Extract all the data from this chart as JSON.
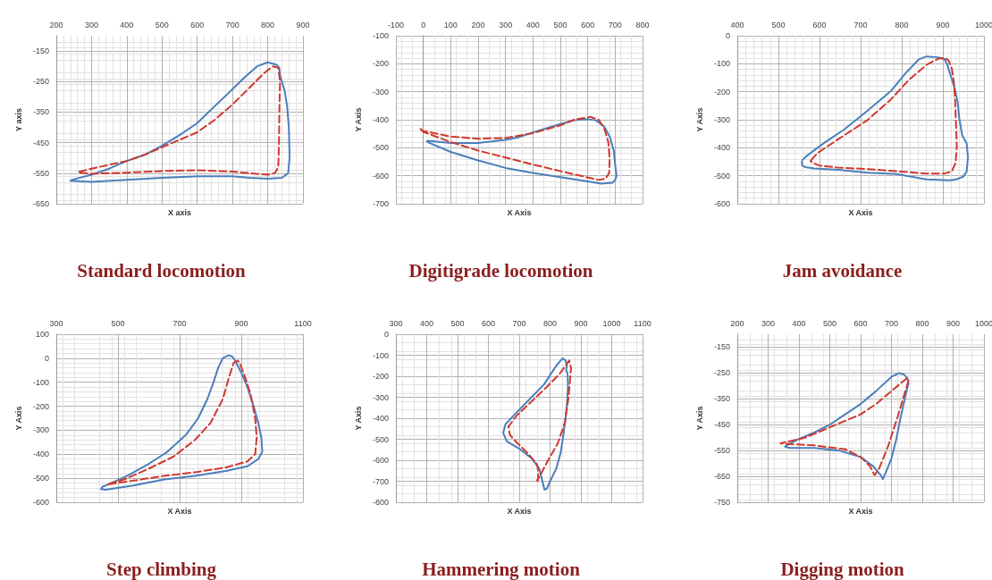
{
  "chart_data": [
    {
      "type": "line",
      "title": "Standard locomotion",
      "xlabel": "X axis",
      "ylabel": "Y axis",
      "xlim": [
        200,
        900
      ],
      "xticks": [
        200,
        300,
        400,
        500,
        600,
        700,
        800,
        900
      ],
      "ylim": [
        -650,
        -100
      ],
      "yticks": [
        -650,
        -550,
        -450,
        -350,
        -250,
        -150
      ],
      "grid": true,
      "marker": "none",
      "series": [
        {
          "color": "#4a7ebb",
          "line_style": "solid",
          "x": [
            240,
            300,
            400,
            500,
            600,
            700,
            750,
            800,
            840,
            858,
            862,
            860,
            855,
            848,
            835,
            833,
            825,
            800,
            770,
            740,
            700,
            650,
            600,
            550,
            500,
            450,
            400,
            350,
            300,
            250,
            243
          ],
          "values": [
            -575,
            -578,
            -572,
            -565,
            -560,
            -560,
            -565,
            -568,
            -565,
            -550,
            -500,
            -400,
            -330,
            -280,
            -230,
            -205,
            -195,
            -187,
            -200,
            -230,
            -275,
            -330,
            -386,
            -425,
            -460,
            -490,
            -510,
            -535,
            -555,
            -570,
            -573
          ]
        },
        {
          "color": "#d0382e",
          "line_style": "dashed",
          "x": [
            265,
            300,
            400,
            450,
            500,
            600,
            650,
            700,
            750,
            790,
            815,
            830,
            835,
            833,
            832,
            830,
            820,
            800,
            750,
            700,
            600,
            500,
            400,
            300,
            265
          ],
          "values": [
            -545,
            -535,
            -510,
            -490,
            -465,
            -416,
            -375,
            -325,
            -268,
            -222,
            -200,
            -205,
            -250,
            -350,
            -450,
            -530,
            -550,
            -555,
            -550,
            -545,
            -540,
            -543,
            -548,
            -552,
            -548
          ]
        }
      ]
    },
    {
      "type": "line",
      "title": "Digitigrade locomotion",
      "xlabel": "X Axis",
      "ylabel": "Y Axis",
      "xlim": [
        -100,
        800
      ],
      "xticks": [
        -100,
        0,
        100,
        200,
        300,
        400,
        500,
        600,
        700,
        800
      ],
      "ylim": [
        -700,
        -100
      ],
      "yticks": [
        -700,
        -600,
        -500,
        -400,
        -300,
        -200,
        -100
      ],
      "grid": true,
      "marker": "none",
      "series": [
        {
          "color": "#4a7ebb",
          "line_style": "solid",
          "x": [
            15,
            100,
            200,
            300,
            350,
            400,
            450,
            500,
            550,
            600,
            630,
            660,
            680,
            695,
            700,
            705,
            700,
            690,
            650,
            600,
            500,
            400,
            300,
            200,
            100,
            20,
            13
          ],
          "values": [
            -475,
            -483,
            -483,
            -472,
            -462,
            -445,
            -430,
            -415,
            -402,
            -398,
            -402,
            -425,
            -460,
            -510,
            -560,
            -600,
            -615,
            -625,
            -628,
            -620,
            -605,
            -590,
            -572,
            -545,
            -515,
            -482,
            -478
          ]
        },
        {
          "color": "#d0382e",
          "line_style": "dashed",
          "x": [
            -10,
            0,
            100,
            200,
            300,
            400,
            500,
            550,
            610,
            640,
            660,
            675,
            680,
            678,
            665,
            640,
            550,
            400,
            300,
            200,
            100,
            0,
            -10
          ],
          "values": [
            -433,
            -440,
            -460,
            -468,
            -465,
            -448,
            -420,
            -400,
            -390,
            -400,
            -430,
            -480,
            -540,
            -590,
            -610,
            -615,
            -595,
            -560,
            -535,
            -510,
            -480,
            -443,
            -435
          ]
        }
      ]
    },
    {
      "type": "line",
      "title": "Jam avoidance",
      "xlabel": "X Axis",
      "ylabel": "Y Axis",
      "xlim": [
        400,
        1000
      ],
      "xticks": [
        400,
        500,
        600,
        700,
        800,
        900,
        1000
      ],
      "ylim": [
        -600,
        0
      ],
      "yticks": [
        -600,
        -500,
        -400,
        -300,
        -200,
        -100,
        0
      ],
      "grid": true,
      "marker": "none",
      "series": [
        {
          "color": "#4a7ebb",
          "line_style": "solid",
          "x": [
            558,
            569,
            609,
            659,
            717,
            774,
            810,
            835,
            842,
            860,
            889,
            904,
            911,
            918,
            929,
            936,
            940,
            947,
            958,
            961,
            958,
            950,
            932,
            918,
            860,
            788,
            717,
            645,
            587,
            565,
            558,
            557
          ],
          "values": [
            -444,
            -429,
            -385,
            -336,
            -267,
            -197,
            -133,
            -94,
            -84,
            -74,
            -77,
            -84,
            -104,
            -138,
            -188,
            -237,
            -296,
            -355,
            -385,
            -434,
            -484,
            -503,
            -513,
            -516,
            -513,
            -494,
            -489,
            -479,
            -474,
            -469,
            -464,
            -450
          ]
        },
        {
          "color": "#d0382e",
          "line_style": "dashed",
          "x": [
            580,
            594,
            645,
            717,
            774,
            817,
            860,
            889,
            905,
            914,
            922,
            927,
            930,
            932,
            934,
            931,
            922,
            904,
            860,
            788,
            717,
            645,
            601,
            583,
            578
          ],
          "values": [
            -444,
            -420,
            -370,
            -301,
            -227,
            -158,
            -104,
            -82,
            -79,
            -89,
            -118,
            -168,
            -237,
            -316,
            -395,
            -454,
            -484,
            -492,
            -492,
            -484,
            -476,
            -471,
            -464,
            -454,
            -447
          ]
        }
      ]
    },
    {
      "type": "line",
      "title": "Step climbing",
      "xlabel": "X Axis",
      "ylabel": "Y Axis",
      "xlim": [
        300,
        1100
      ],
      "xticks": [
        300,
        500,
        700,
        900,
        1100
      ],
      "ylim": [
        -600,
        100
      ],
      "yticks": [
        -600,
        -500,
        -400,
        -300,
        -200,
        -100,
        0,
        100
      ],
      "grid": true,
      "marker": "none",
      "series": [
        {
          "color": "#4a7ebb",
          "line_style": "solid",
          "x": [
            855,
            840,
            825,
            810,
            790,
            760,
            720,
            660,
            600,
            530,
            470,
            450,
            445,
            460,
            550,
            650,
            750,
            850,
            920,
            955,
            968,
            965,
            955,
            940,
            920,
            900,
            880,
            870,
            858
          ],
          "values": [
            10,
            0,
            -40,
            -100,
            -170,
            -250,
            -320,
            -390,
            -440,
            -490,
            -525,
            -535,
            -545,
            -548,
            -530,
            -505,
            -490,
            -470,
            -450,
            -420,
            -390,
            -330,
            -270,
            -200,
            -120,
            -60,
            -10,
            8,
            12
          ]
        },
        {
          "color": "#d0382e",
          "line_style": "dashed",
          "x": [
            888,
            875,
            860,
            840,
            800,
            750,
            680,
            600,
            520,
            465,
            470,
            550,
            650,
            750,
            850,
            920,
            945,
            950,
            945,
            930,
            910,
            895,
            890
          ],
          "values": [
            -10,
            -20,
            -80,
            -170,
            -270,
            -340,
            -410,
            -460,
            -505,
            -525,
            -525,
            -510,
            -490,
            -475,
            -455,
            -430,
            -400,
            -330,
            -250,
            -150,
            -70,
            -20,
            -12
          ]
        }
      ]
    },
    {
      "type": "line",
      "title": "Hammering motion",
      "xlabel": "X Axis",
      "ylabel": "Y Axis",
      "xlim": [
        300,
        1100
      ],
      "xticks": [
        300,
        400,
        500,
        600,
        700,
        800,
        900,
        1000,
        1100
      ],
      "ylim": [
        -800,
        0
      ],
      "yticks": [
        -800,
        -700,
        -600,
        -500,
        -400,
        -300,
        -200,
        -100,
        0
      ],
      "grid": true,
      "marker": "none",
      "series": [
        {
          "color": "#4a7ebb",
          "line_style": "solid",
          "x": [
            840,
            820,
            780,
            720,
            680,
            655,
            648,
            660,
            700,
            740,
            765,
            775,
            782,
            790,
            800,
            820,
            835,
            845,
            850,
            855,
            858,
            857,
            852,
            855,
            850,
            843
          ],
          "values": [
            -115,
            -150,
            -240,
            -330,
            -390,
            -430,
            -470,
            -510,
            -545,
            -590,
            -640,
            -700,
            -740,
            -735,
            -700,
            -640,
            -560,
            -460,
            -400,
            -330,
            -250,
            -190,
            -170,
            -150,
            -125,
            -117
          ]
        },
        {
          "color": "#d0382e",
          "line_style": "dashed",
          "x": [
            760,
            762,
            758,
            730,
            695,
            670,
            665,
            690,
            740,
            790,
            830,
            855,
            862,
            868,
            860,
            848,
            825,
            790,
            765,
            758
          ],
          "values": [
            -700,
            -660,
            -620,
            -570,
            -520,
            -480,
            -440,
            -390,
            -320,
            -250,
            -190,
            -140,
            -125,
            -160,
            -300,
            -420,
            -520,
            -610,
            -680,
            -695
          ]
        }
      ]
    },
    {
      "type": "line",
      "title": "Digging motion",
      "xlabel": "X Axis",
      "ylabel": "Y Axis",
      "xlim": [
        200,
        1000
      ],
      "xticks": [
        200,
        300,
        400,
        500,
        600,
        700,
        800,
        900,
        1000
      ],
      "ylim": [
        -750,
        -100
      ],
      "yticks": [
        -750,
        -650,
        -550,
        -450,
        -350,
        -250,
        -150
      ],
      "grid": true,
      "marker": "none",
      "series": [
        {
          "color": "#4a7ebb",
          "line_style": "solid",
          "x": [
            725,
            700,
            650,
            600,
            550,
            500,
            450,
            400,
            360,
            355,
            370,
            450,
            530,
            600,
            640,
            665,
            672,
            680,
            700,
            715,
            730,
            745,
            755,
            752,
            740,
            728
          ],
          "values": [
            -250,
            -265,
            -320,
            -370,
            -410,
            -450,
            -480,
            -505,
            -530,
            -535,
            -540,
            -540,
            -550,
            -575,
            -610,
            -645,
            -660,
            -640,
            -580,
            -510,
            -420,
            -340,
            -290,
            -270,
            -255,
            -252
          ]
        },
        {
          "color": "#d0382e",
          "line_style": "dashed",
          "x": [
            750,
            700,
            650,
            600,
            500,
            420,
            340,
            370,
            450,
            550,
            600,
            630,
            645,
            660,
            690,
            720,
            745,
            755,
            752
          ],
          "values": [
            -270,
            -320,
            -370,
            -410,
            -460,
            -500,
            -522,
            -525,
            -530,
            -545,
            -575,
            -610,
            -645,
            -620,
            -530,
            -420,
            -320,
            -280,
            -274
          ]
        }
      ]
    }
  ]
}
